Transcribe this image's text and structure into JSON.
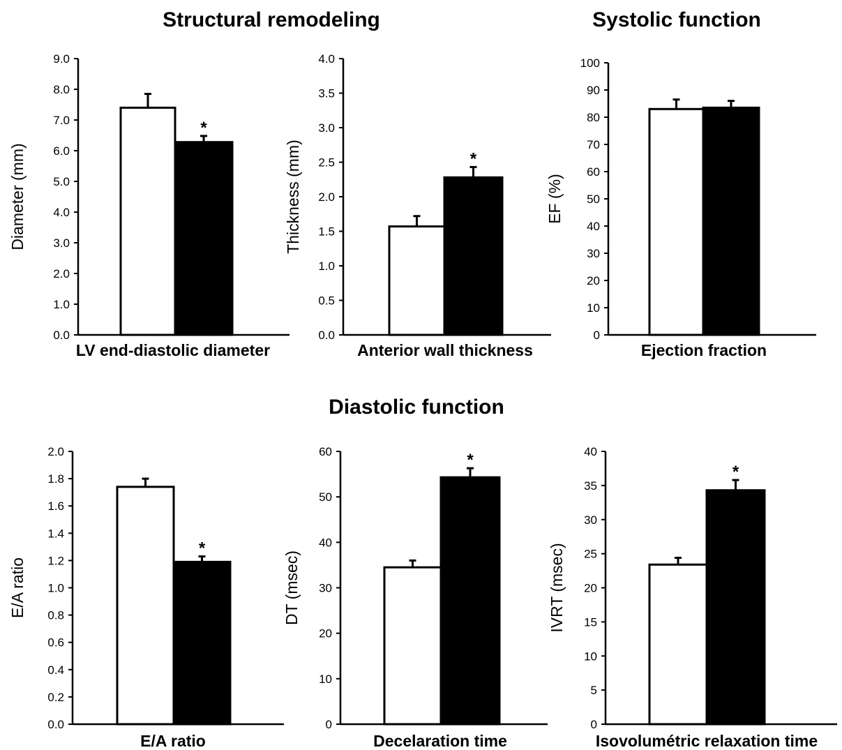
{
  "section_titles": {
    "structural": "Structural remodeling",
    "systolic": "Systolic function",
    "diastolic": "Diastolic function"
  },
  "colors": {
    "control_fill": "#ffffff",
    "treated_fill": "#000000",
    "axis": "#000000"
  },
  "chart_data": [
    {
      "type": "bar",
      "xlabel": "LV end-diastolic diameter",
      "ylabel": "Diameter (mm)",
      "ylim": [
        0,
        9
      ],
      "ticks": [
        "0.0",
        "1.0",
        "2.0",
        "3.0",
        "4.0",
        "5.0",
        "6.0",
        "7.0",
        "8.0",
        "9.0"
      ],
      "series": [
        {
          "fill": "white",
          "value": 7.4,
          "error": 0.45,
          "significant": false
        },
        {
          "fill": "black",
          "value": 6.28,
          "error": 0.2,
          "significant": true
        }
      ],
      "marker": "*"
    },
    {
      "type": "bar",
      "xlabel": "Anterior wall thickness",
      "ylabel": "Thickness (mm)",
      "ylim": [
        0,
        4
      ],
      "ticks": [
        "0.0",
        "0.5",
        "1.0",
        "1.5",
        "2.0",
        "2.5",
        "3.0",
        "3.5",
        "4.0"
      ],
      "series": [
        {
          "fill": "white",
          "value": 1.57,
          "error": 0.15,
          "significant": false
        },
        {
          "fill": "black",
          "value": 2.28,
          "error": 0.15,
          "significant": true
        }
      ],
      "marker": "*"
    },
    {
      "type": "bar",
      "xlabel": "Ejection fraction",
      "ylabel": "EF (%)",
      "ylim": [
        0,
        100
      ],
      "ticks": [
        "0",
        "10",
        "20",
        "30",
        "40",
        "50",
        "60",
        "70",
        "80",
        "90",
        "100"
      ],
      "series": [
        {
          "fill": "white",
          "value": 83,
          "error": 3.5,
          "significant": false
        },
        {
          "fill": "black",
          "value": 83.5,
          "error": 2.5,
          "significant": false
        }
      ],
      "marker": "*"
    },
    {
      "type": "bar",
      "xlabel": "E/A ratio",
      "ylabel": "E/A ratio",
      "ylim": [
        0,
        2
      ],
      "ticks": [
        "0.0",
        "0.2",
        "0.4",
        "0.6",
        "0.8",
        "1.0",
        "1.2",
        "1.4",
        "1.6",
        "1.8",
        "2.0"
      ],
      "series": [
        {
          "fill": "white",
          "value": 1.74,
          "error": 0.06,
          "significant": false
        },
        {
          "fill": "black",
          "value": 1.19,
          "error": 0.04,
          "significant": true
        }
      ],
      "marker": "*"
    },
    {
      "type": "bar",
      "xlabel": "Decelaration time",
      "ylabel": "DT (msec)",
      "ylim": [
        0,
        60
      ],
      "ticks": [
        "0",
        "10",
        "20",
        "30",
        "40",
        "50",
        "60"
      ],
      "series": [
        {
          "fill": "white",
          "value": 34.5,
          "error": 1.5,
          "significant": false
        },
        {
          "fill": "black",
          "value": 54.3,
          "error": 2.0,
          "significant": true
        }
      ],
      "marker": "*"
    },
    {
      "type": "bar",
      "xlabel": "Isovolumétric relaxation time",
      "ylabel": "IVRT (msec)",
      "ylim": [
        0,
        40
      ],
      "ticks": [
        "0",
        "5",
        "10",
        "15",
        "20",
        "25",
        "30",
        "35",
        "40"
      ],
      "series": [
        {
          "fill": "white",
          "value": 23.4,
          "error": 1.0,
          "significant": false
        },
        {
          "fill": "black",
          "value": 34.3,
          "error": 1.5,
          "significant": true
        }
      ],
      "marker": "*"
    }
  ]
}
